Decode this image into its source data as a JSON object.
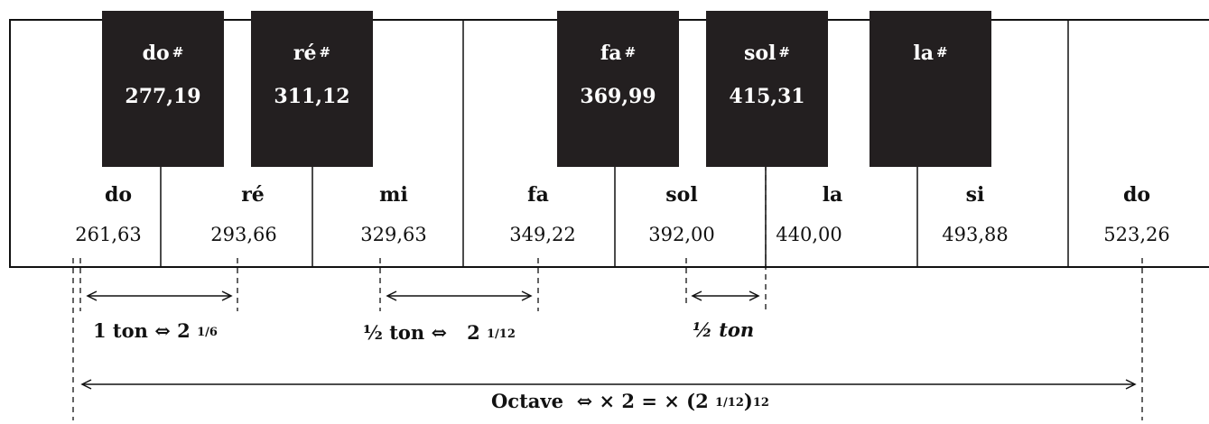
{
  "white_keys": [
    {
      "name": "do",
      "freq": "261,63"
    },
    {
      "name": "ré",
      "freq": "293,66"
    },
    {
      "name": "mi",
      "freq": "329,63"
    },
    {
      "name": "fa",
      "freq": "349,22"
    },
    {
      "name": "sol",
      "freq": "392,00"
    },
    {
      "name": "la",
      "freq": "440,00"
    },
    {
      "name": "si",
      "freq": "493,88"
    },
    {
      "name": "do",
      "freq": "523,26"
    }
  ],
  "black_keys": [
    {
      "name": "do",
      "sharp": "#",
      "freq": "277,19"
    },
    {
      "name": "ré",
      "sharp": "#",
      "freq": "311,12"
    },
    {
      "name": "fa",
      "sharp": "#",
      "freq": "369,99"
    },
    {
      "name": "sol",
      "sharp": "#",
      "freq": "415,31"
    },
    {
      "name": "la",
      "sharp": "#",
      "freq": ""
    }
  ],
  "annotations": {
    "tone": {
      "label": "1 ton",
      "symbol": "⇔",
      "base": "2",
      "exp": "1/6"
    },
    "semitone": {
      "label": "½ ton",
      "symbol": "⇔",
      "base": "2",
      "exp": "1/12"
    },
    "semitone2": {
      "label": "½ ton"
    },
    "octave": {
      "label": "Octave",
      "symbol": "⇔",
      "mid": "× 2 = × (2",
      "exp": "1/12",
      "tail": ")",
      "exp2": "12"
    }
  },
  "colors": {
    "black_key": "#231f20",
    "line": "#111111",
    "background": "#ffffff"
  }
}
